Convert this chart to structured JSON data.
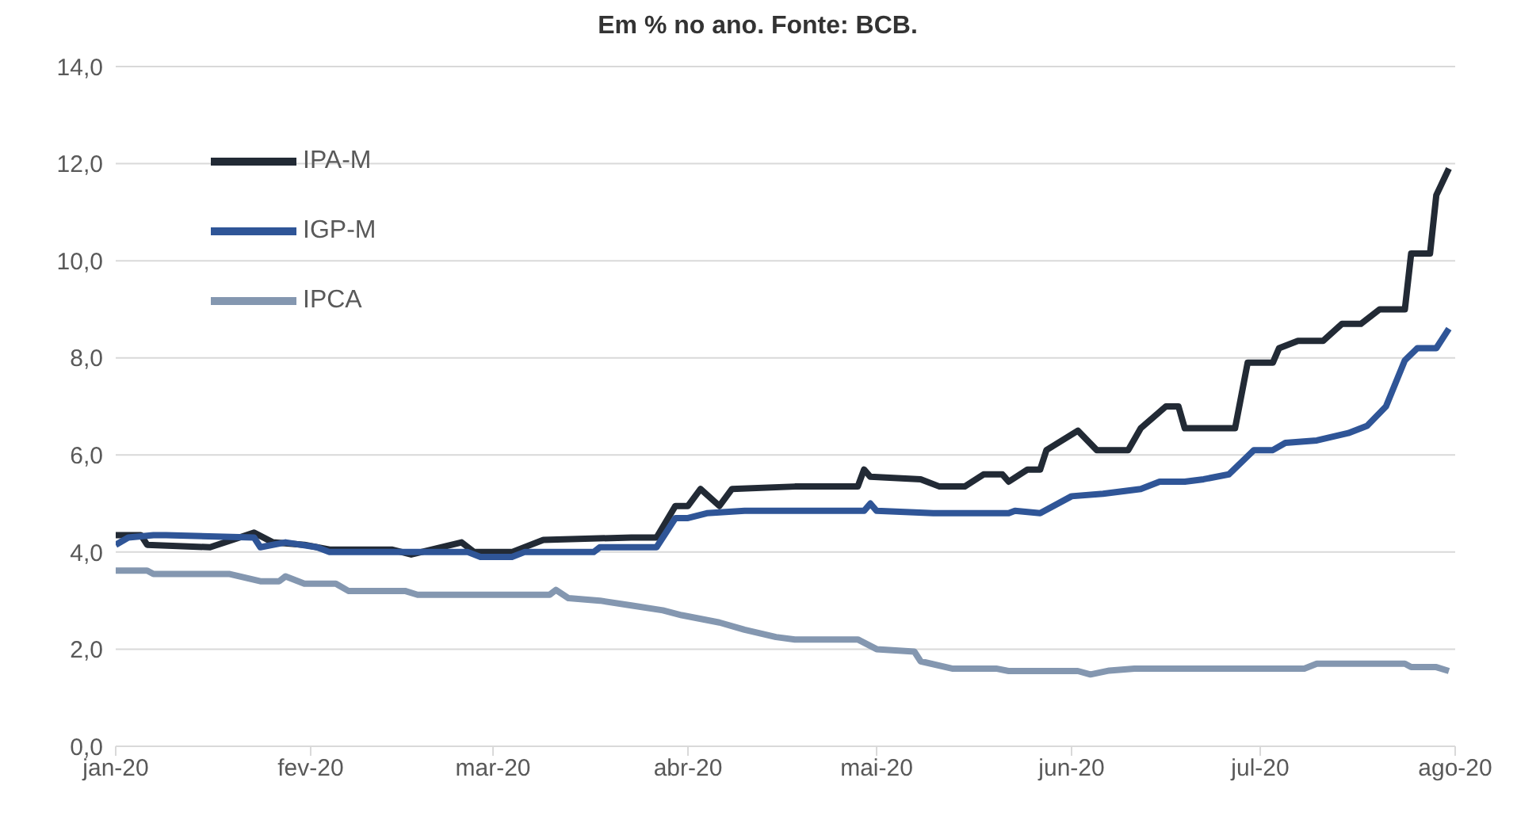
{
  "chart_data": {
    "type": "line",
    "title": "Em % no ano. Fonte: BCB.",
    "series": [
      {
        "name": "IPA-M",
        "color": "#222a35",
        "x": [
          "2020-01-01",
          "2020-01-05",
          "2020-01-06",
          "2020-01-16",
          "2020-01-23",
          "2020-01-26",
          "2020-01-31",
          "2020-02-04",
          "2020-02-14",
          "2020-02-17",
          "2020-02-25",
          "2020-02-27",
          "2020-03-04",
          "2020-03-09",
          "2020-03-23",
          "2020-03-27",
          "2020-03-30",
          "2020-04-01",
          "2020-04-03",
          "2020-04-06",
          "2020-04-08",
          "2020-04-18",
          "2020-04-28",
          "2020-04-29",
          "2020-04-30",
          "2020-05-08",
          "2020-05-11",
          "2020-05-15",
          "2020-05-18",
          "2020-05-21",
          "2020-05-22",
          "2020-05-25",
          "2020-05-27",
          "2020-05-28",
          "2020-06-02",
          "2020-06-05",
          "2020-06-10",
          "2020-06-12",
          "2020-06-16",
          "2020-06-18",
          "2020-06-19",
          "2020-06-27",
          "2020-06-29",
          "2020-07-03",
          "2020-07-04",
          "2020-07-07",
          "2020-07-11",
          "2020-07-14",
          "2020-07-17",
          "2020-07-20",
          "2020-07-24",
          "2020-07-25",
          "2020-07-28",
          "2020-07-29",
          "2020-07-31"
        ],
        "values": [
          4.35,
          4.35,
          4.15,
          4.1,
          4.4,
          4.2,
          4.15,
          4.05,
          4.05,
          3.95,
          4.2,
          4.0,
          4.0,
          4.25,
          4.3,
          4.3,
          4.95,
          4.95,
          5.3,
          4.95,
          5.3,
          5.35,
          5.35,
          5.7,
          5.55,
          5.5,
          5.35,
          5.35,
          5.6,
          5.6,
          5.45,
          5.7,
          5.7,
          6.1,
          6.5,
          6.1,
          6.1,
          6.55,
          7.0,
          7.0,
          6.55,
          6.55,
          7.9,
          7.9,
          8.2,
          8.35,
          8.35,
          8.7,
          8.7,
          9.0,
          9.0,
          10.15,
          10.15,
          11.35,
          11.9
        ]
      },
      {
        "name": "IGP-M",
        "color": "#2f5597",
        "x": [
          "2020-01-01",
          "2020-01-03",
          "2020-01-07",
          "2020-01-09",
          "2020-01-23",
          "2020-01-24",
          "2020-01-28",
          "2020-02-02",
          "2020-02-04",
          "2020-02-17",
          "2020-02-26",
          "2020-02-28",
          "2020-03-04",
          "2020-03-06",
          "2020-03-17",
          "2020-03-18",
          "2020-03-27",
          "2020-03-30",
          "2020-04-01",
          "2020-04-04",
          "2020-04-10",
          "2020-04-29",
          "2020-04-30",
          "2020-05-01",
          "2020-05-10",
          "2020-05-22",
          "2020-05-23",
          "2020-05-27",
          "2020-06-01",
          "2020-06-06",
          "2020-06-12",
          "2020-06-15",
          "2020-06-19",
          "2020-06-22",
          "2020-06-26",
          "2020-06-30",
          "2020-07-03",
          "2020-07-05",
          "2020-07-10",
          "2020-07-15",
          "2020-07-18",
          "2020-07-21",
          "2020-07-24",
          "2020-07-26",
          "2020-07-29",
          "2020-07-31"
        ],
        "values": [
          4.15,
          4.3,
          4.35,
          4.35,
          4.3,
          4.1,
          4.2,
          4.1,
          4.0,
          4.0,
          4.0,
          3.9,
          3.9,
          4.0,
          4.0,
          4.1,
          4.1,
          4.7,
          4.7,
          4.8,
          4.85,
          4.85,
          5.0,
          4.85,
          4.8,
          4.8,
          4.85,
          4.8,
          5.15,
          5.2,
          5.3,
          5.45,
          5.45,
          5.5,
          5.6,
          6.1,
          6.1,
          6.25,
          6.3,
          6.45,
          6.6,
          7.0,
          7.95,
          8.2,
          8.2,
          8.6
        ]
      },
      {
        "name": "IPCA",
        "color": "#8497b0",
        "x": [
          "2020-01-01",
          "2020-01-06",
          "2020-01-07",
          "2020-01-19",
          "2020-01-24",
          "2020-01-27",
          "2020-01-28",
          "2020-01-31",
          "2020-02-05",
          "2020-02-07",
          "2020-02-16",
          "2020-02-18",
          "2020-03-10",
          "2020-03-11",
          "2020-03-13",
          "2020-03-18",
          "2020-03-23",
          "2020-03-28",
          "2020-03-31",
          "2020-04-06",
          "2020-04-10",
          "2020-04-15",
          "2020-04-18",
          "2020-04-28",
          "2020-05-01",
          "2020-05-07",
          "2020-05-08",
          "2020-05-13",
          "2020-05-20",
          "2020-05-22",
          "2020-06-02",
          "2020-06-04",
          "2020-06-07",
          "2020-06-11",
          "2020-07-08",
          "2020-07-10",
          "2020-07-24",
          "2020-07-25",
          "2020-07-29",
          "2020-07-31"
        ],
        "values": [
          3.62,
          3.62,
          3.55,
          3.55,
          3.4,
          3.4,
          3.5,
          3.35,
          3.35,
          3.2,
          3.2,
          3.12,
          3.12,
          3.22,
          3.05,
          3.0,
          2.9,
          2.8,
          2.7,
          2.55,
          2.4,
          2.25,
          2.2,
          2.2,
          2.0,
          1.95,
          1.75,
          1.6,
          1.6,
          1.55,
          1.55,
          1.48,
          1.56,
          1.6,
          1.6,
          1.7,
          1.7,
          1.63,
          1.63,
          1.55
        ]
      }
    ],
    "xlim": [
      "2020-01-01",
      "2020-08-01"
    ],
    "xticks": [
      {
        "value": "2020-01-01",
        "label": "jan-20"
      },
      {
        "value": "2020-02-01",
        "label": "fev-20"
      },
      {
        "value": "2020-03-01",
        "label": "mar-20"
      },
      {
        "value": "2020-04-01",
        "label": "abr-20"
      },
      {
        "value": "2020-05-01",
        "label": "mai-20"
      },
      {
        "value": "2020-06-01",
        "label": "jun-20"
      },
      {
        "value": "2020-07-01",
        "label": "jul-20"
      },
      {
        "value": "2020-08-01",
        "label": "ago-20"
      }
    ],
    "ylim": [
      0,
      14
    ],
    "yticks": [
      {
        "value": 0,
        "label": "0,0"
      },
      {
        "value": 2,
        "label": "2,0"
      },
      {
        "value": 4,
        "label": "4,0"
      },
      {
        "value": 6,
        "label": "6,0"
      },
      {
        "value": 8,
        "label": "8,0"
      },
      {
        "value": 10,
        "label": "10,0"
      },
      {
        "value": 12,
        "label": "12,0"
      },
      {
        "value": 14,
        "label": "14,0"
      }
    ],
    "grid": "y",
    "legend": "top left",
    "marker": "none",
    "line_style": "solid"
  }
}
